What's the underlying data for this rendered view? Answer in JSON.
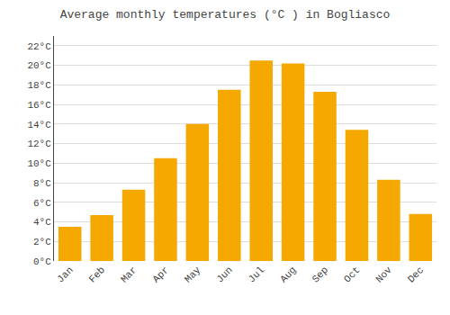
{
  "chart_data": {
    "type": "bar",
    "title": "Average monthly temperatures (°C ) in Bogliasco",
    "categories": [
      "Jan",
      "Feb",
      "Mar",
      "Apr",
      "May",
      "Jun",
      "Jul",
      "Aug",
      "Sep",
      "Oct",
      "Nov",
      "Dec"
    ],
    "values": [
      3.5,
      4.7,
      7.3,
      10.5,
      14.0,
      17.5,
      20.5,
      20.2,
      17.3,
      13.4,
      8.3,
      4.8
    ],
    "color": "#F5A800",
    "ylim": [
      0,
      23
    ],
    "yticks": [
      {
        "value": 0,
        "label": "0°C"
      },
      {
        "value": 2,
        "label": "2°C"
      },
      {
        "value": 4,
        "label": "4°C"
      },
      {
        "value": 6,
        "label": "6°C"
      },
      {
        "value": 8,
        "label": "8°C"
      },
      {
        "value": 10,
        "label": "10°C"
      },
      {
        "value": 12,
        "label": "12°C"
      },
      {
        "value": 14,
        "label": "14°C"
      },
      {
        "value": 16,
        "label": "16°C"
      },
      {
        "value": 18,
        "label": "18°C"
      },
      {
        "value": 20,
        "label": "20°C"
      },
      {
        "value": 22,
        "label": "22°C"
      }
    ],
    "grid": true
  }
}
